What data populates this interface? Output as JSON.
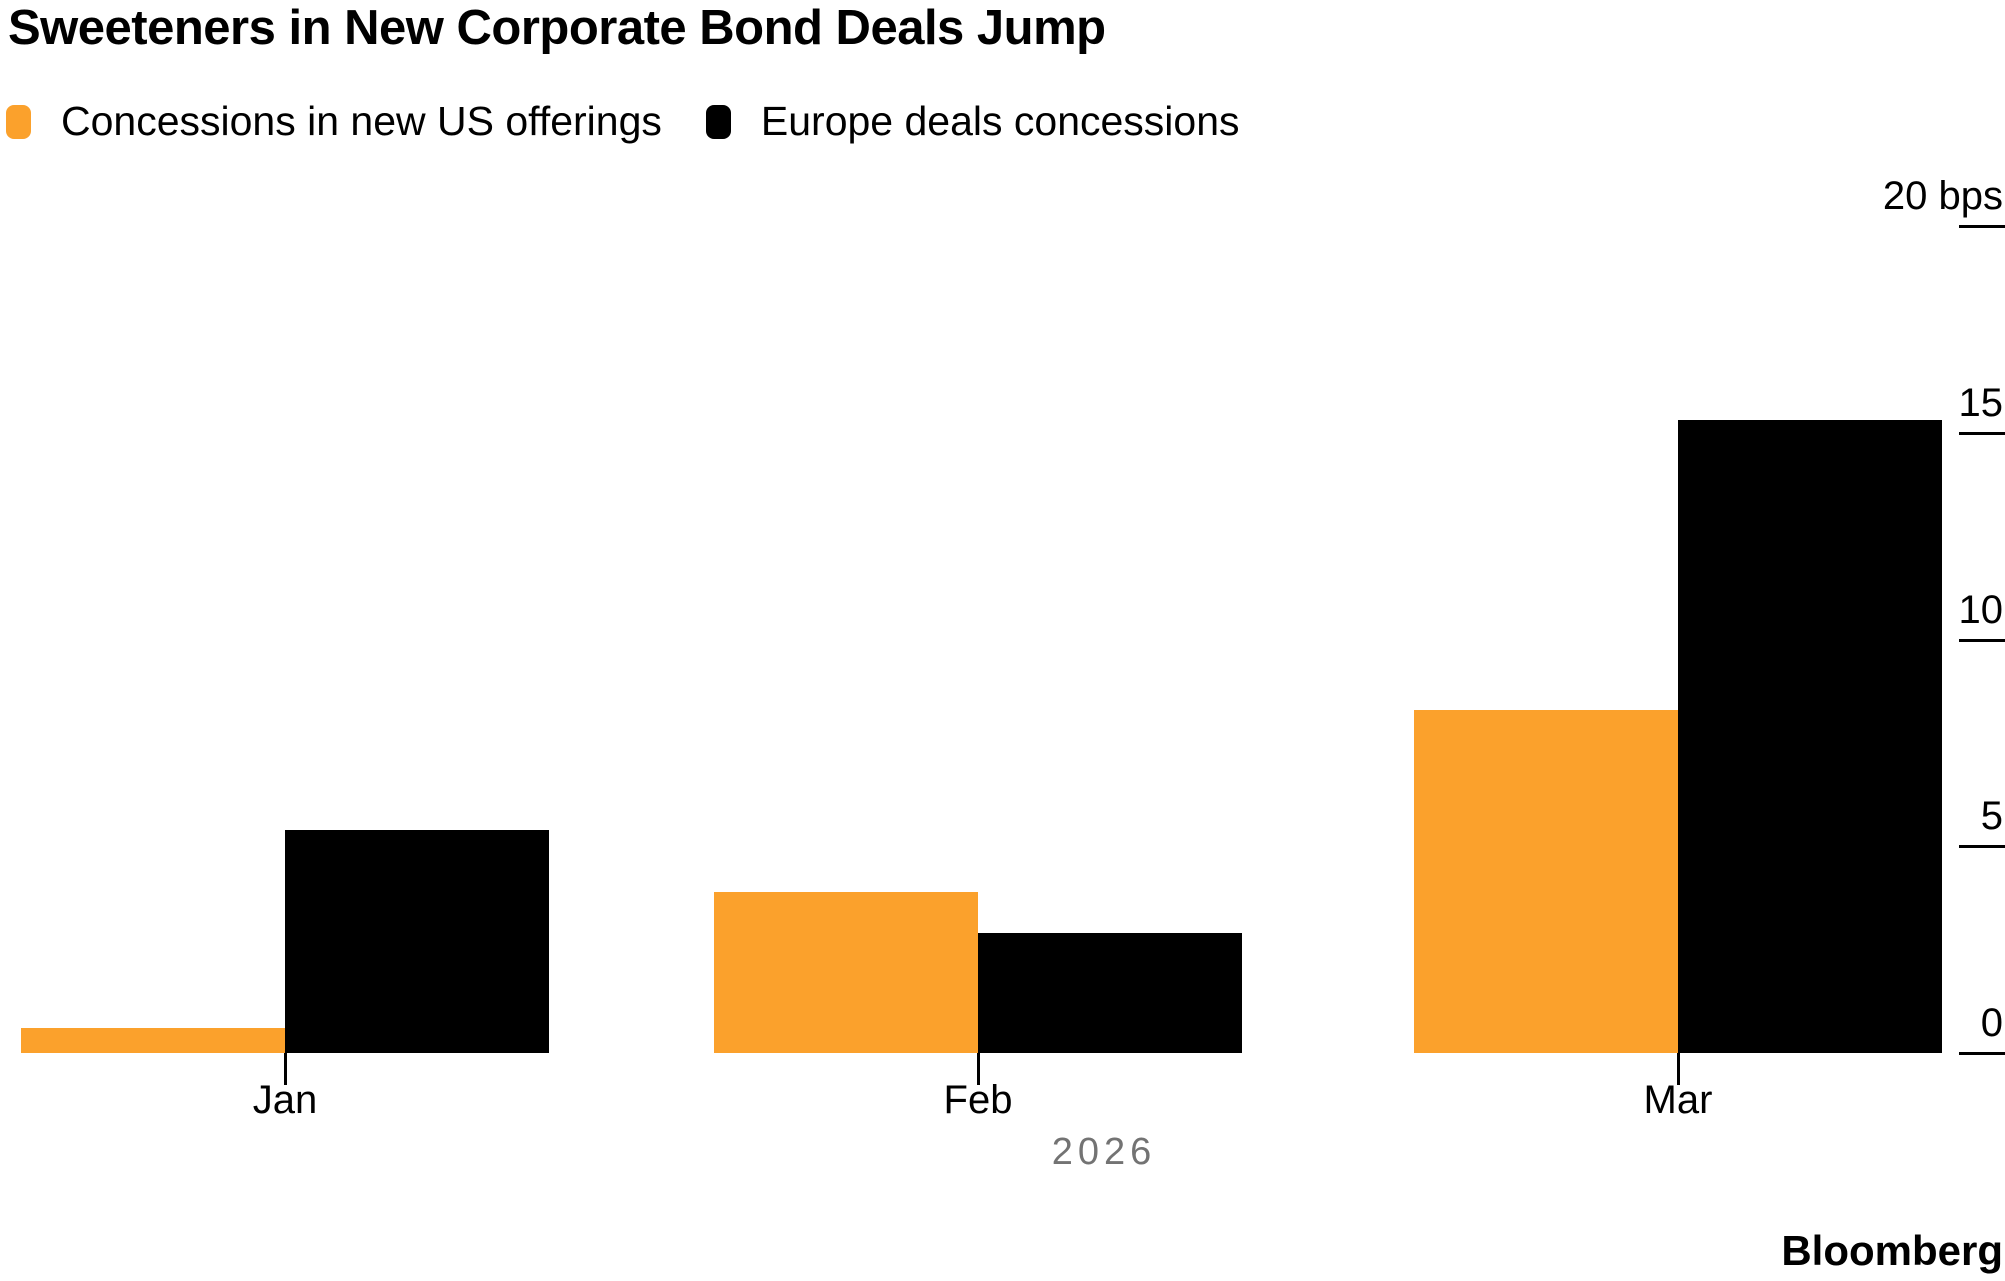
{
  "credit": "Bloomberg",
  "chart_data": {
    "type": "bar",
    "title": "Sweeteners in New Corporate Bond Deals Jump",
    "categories": [
      "Jan",
      "Feb",
      "Mar"
    ],
    "series": [
      {
        "name": "Concessions in new US offerings",
        "color": "#FBA12C",
        "values": [
          0.6,
          3.9,
          8.3
        ]
      },
      {
        "name": "Europe deals concessions",
        "color": "#000000",
        "values": [
          5.4,
          2.9,
          15.3
        ]
      }
    ],
    "xlabel_year": "2026",
    "unit": "bps",
    "ylim": [
      0,
      20
    ],
    "yticks": [
      0,
      5,
      10,
      15,
      20
    ],
    "ytick_labels": [
      "0",
      "5",
      "10",
      "15",
      "20 bps"
    ],
    "axis_side": "right",
    "legend_position": "top-left",
    "grid": false,
    "background": "#ffffff"
  }
}
